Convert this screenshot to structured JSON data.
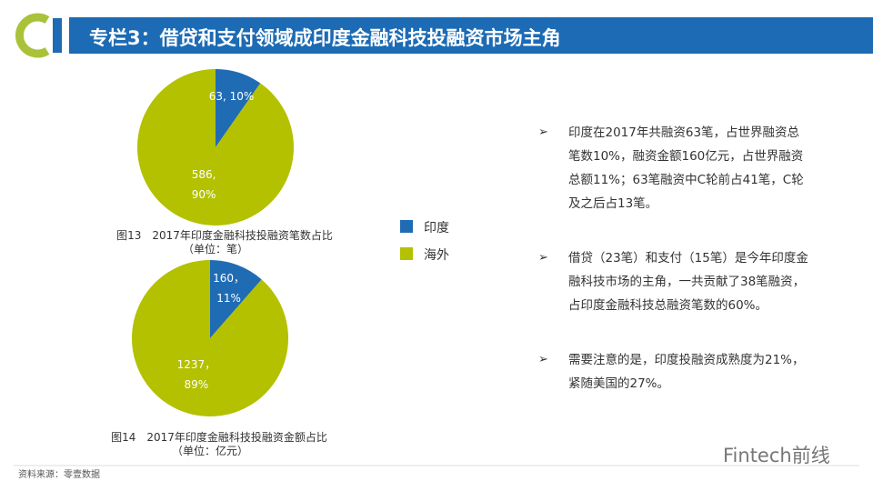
{
  "header": {
    "title": "专栏3：借贷和支付领域成印度金融科技投融资市场主角"
  },
  "chart_data": [
    {
      "type": "pie",
      "caption": "图13　2017年印度金融科技投融资笔数占比",
      "unit": "（单位：笔）",
      "categories": [
        "印度",
        "海外"
      ],
      "values": [
        63,
        586
      ],
      "value_labels": [
        "63, 10%",
        "586,\n90%"
      ],
      "colors": [
        "#1f6cb5",
        "#b3c100"
      ]
    },
    {
      "type": "pie",
      "caption": "图14　2017年印度金融科技投融资金额占比",
      "unit": "（单位：亿元）",
      "categories": [
        "印度",
        "海外"
      ],
      "values": [
        160,
        1237
      ],
      "value_labels": [
        "160，\n11%",
        "1237，\n89%"
      ],
      "colors": [
        "#1f6cb5",
        "#b3c100"
      ]
    }
  ],
  "bullets": [
    "印度在2017年共融资63笔，占世界融资总\n笔数10%，融资金额160亿元，占世界融资\n总额11%；63笔融资中C轮前占41笔，C轮\n及之后占13笔。",
    "借贷（23笔）和支付（15笔）是今年印度金\n融科技市场的主角，一共贡献了38笔融资，\n占印度金融科技总融资笔数的60%。",
    "需要注意的是，印度投融资成熟度为21%，\n紧随美国的27%。"
  ],
  "source": "资料来源：零壹数据",
  "watermark": "Fintech前线"
}
